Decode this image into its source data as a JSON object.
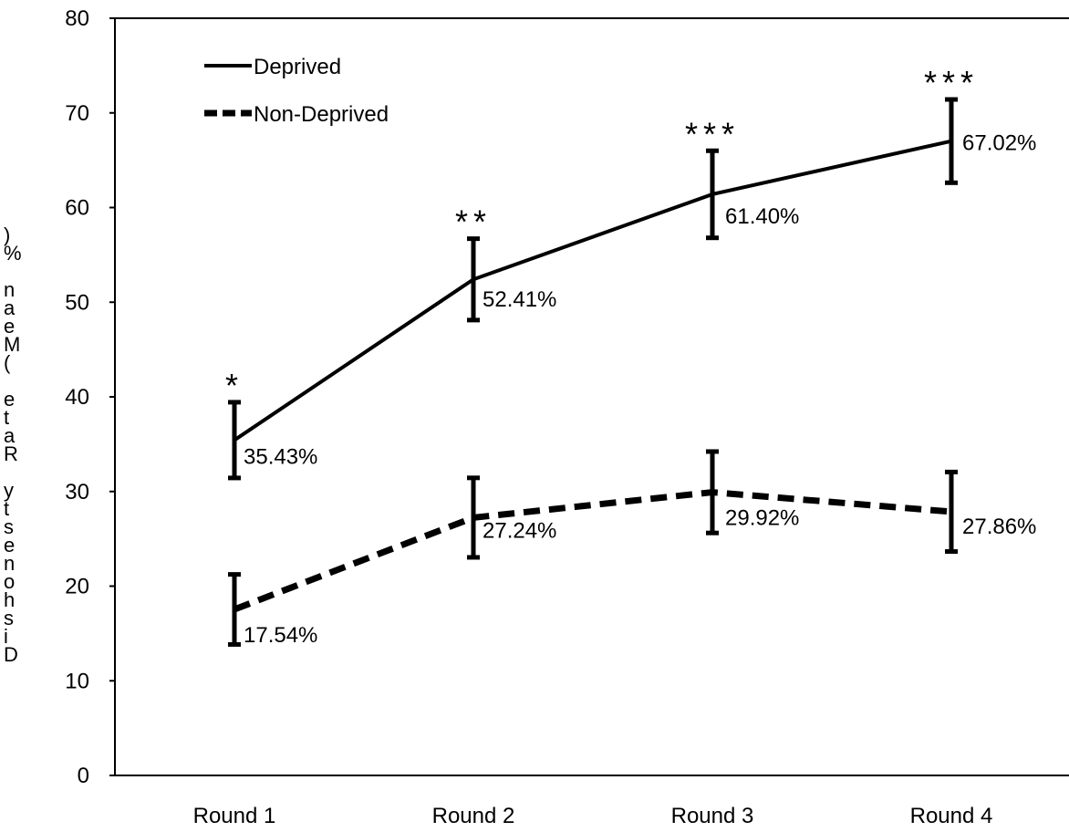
{
  "chart_data": {
    "type": "line",
    "categories": [
      "Round 1",
      "Round 2",
      "Round 3",
      "Round 4"
    ],
    "ylabel": "Dishonesty Rate (Mean %)",
    "ylim": [
      0,
      80
    ],
    "yticks": [
      0,
      10,
      20,
      30,
      40,
      50,
      60,
      70,
      80
    ],
    "grid": false,
    "legend_position": "top-left",
    "series": [
      {
        "name": "Deprived",
        "line_style": "solid",
        "values": [
          35.43,
          52.41,
          61.4,
          67.02
        ],
        "error": [
          4.0,
          4.3,
          4.6,
          4.4
        ],
        "data_labels": [
          "35.43%",
          "52.41%",
          "61.40%",
          "67.02%"
        ],
        "significance": [
          "*",
          "**",
          "***",
          "***"
        ]
      },
      {
        "name": "Non-Deprived",
        "line_style": "dashed",
        "values": [
          17.54,
          27.24,
          29.92,
          27.86
        ],
        "error": [
          3.7,
          4.2,
          4.3,
          4.2
        ],
        "data_labels": [
          "17.54%",
          "27.24%",
          "29.92%",
          "27.86%"
        ]
      }
    ],
    "colors": {
      "line": "#000000",
      "axis": "#000000",
      "background": "#ffffff"
    }
  }
}
